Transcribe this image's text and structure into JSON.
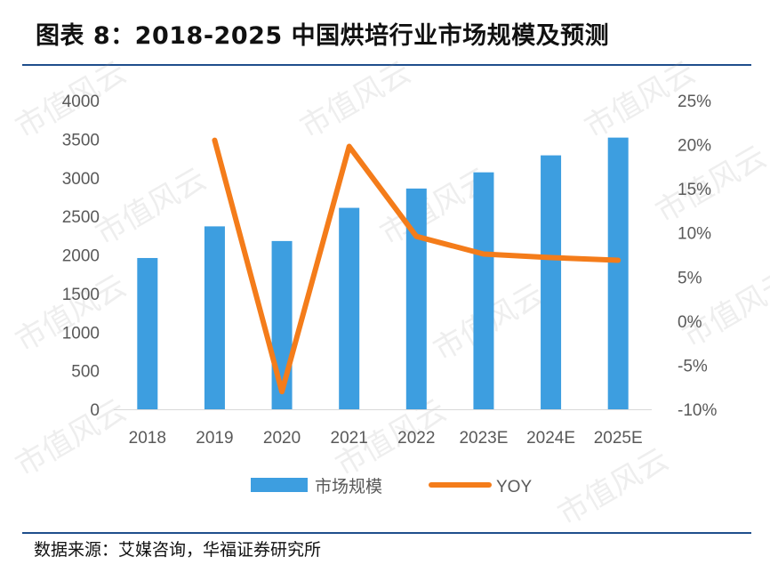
{
  "title": "图表 8：2018-2025 中国烘培行业市场规模及预测",
  "source": "数据来源：艾媒咨询，华福证券研究所",
  "watermark": "市值风云",
  "colors": {
    "bar": "#3d9ee0",
    "line": "#f47c1a",
    "rule": "#1f4e8c",
    "text": "#595959"
  },
  "chart_data": {
    "type": "bar",
    "title": "2018-2025 中国烘培行业市场规模及预测",
    "categories": [
      "2018",
      "2019",
      "2020",
      "2021",
      "2022",
      "2023E",
      "2024E",
      "2025E"
    ],
    "series": [
      {
        "name": "市场规模",
        "type": "bar",
        "axis": "left",
        "values": [
          1960,
          2370,
          2180,
          2610,
          2860,
          3070,
          3290,
          3520
        ]
      },
      {
        "name": "YOY",
        "type": "line",
        "axis": "right",
        "values": [
          null,
          0.205,
          -0.08,
          0.198,
          0.096,
          0.076,
          0.072,
          0.069
        ]
      }
    ],
    "y_left": {
      "min": 0,
      "max": 4000,
      "step": 500,
      "ticks": [
        "0",
        "500",
        "1000",
        "1500",
        "2000",
        "2500",
        "3000",
        "3500",
        "4000"
      ]
    },
    "y_right": {
      "min": -0.1,
      "max": 0.25,
      "step": 0.05,
      "ticks": [
        "-10%",
        "-5%",
        "0%",
        "5%",
        "10%",
        "15%",
        "20%",
        "25%"
      ]
    },
    "legend": {
      "position": "bottom",
      "entries": [
        "市场规模",
        "YOY"
      ]
    },
    "grid": false
  }
}
